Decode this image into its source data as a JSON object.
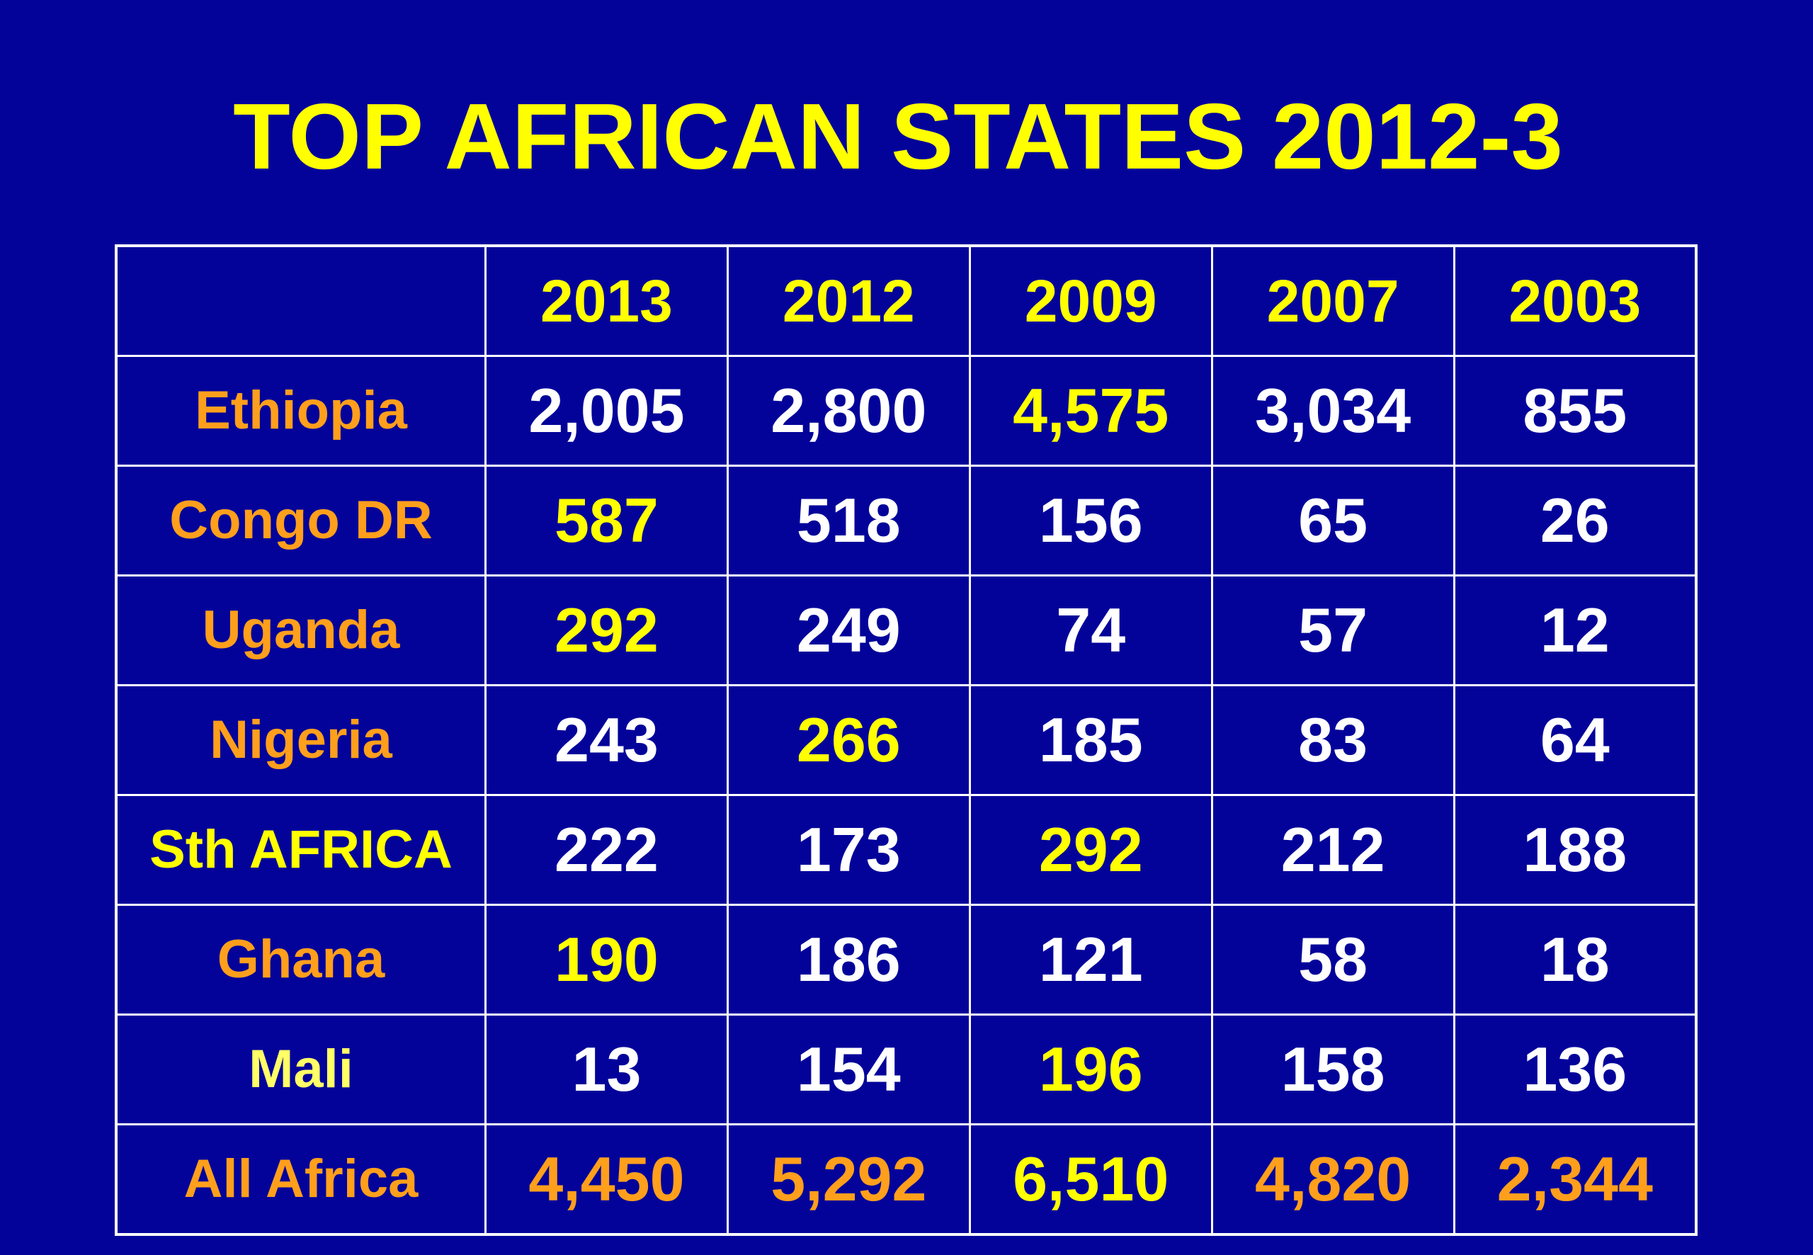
{
  "title": "TOP AFRICAN STATES 2012-3",
  "colors": {
    "background": "#03039a",
    "title": "#ffff00",
    "highlight": "#ffff00",
    "country_label": "#ff9f1c",
    "value": "#ffffff",
    "grid": "#ffffff"
  },
  "chart_data": {
    "type": "table",
    "title": "TOP AFRICAN STATES 2012-3",
    "columns": [
      "2013",
      "2012",
      "2009",
      "2007",
      "2003"
    ],
    "rows": [
      {
        "label": "Ethiopia",
        "label_color": "orange",
        "values": [
          "2,005",
          "2,800",
          "4,575",
          "3,034",
          "855"
        ],
        "highlight_index": 2
      },
      {
        "label": "Congo DR",
        "label_color": "orange",
        "values": [
          "587",
          "518",
          "156",
          "65",
          "26"
        ],
        "highlight_index": 0
      },
      {
        "label": "Uganda",
        "label_color": "orange",
        "values": [
          "292",
          "249",
          "74",
          "57",
          "12"
        ],
        "highlight_index": 0
      },
      {
        "label": "Nigeria",
        "label_color": "orange",
        "values": [
          "243",
          "266",
          "185",
          "83",
          "64"
        ],
        "highlight_index": 1
      },
      {
        "label": "Sth AFRICA",
        "label_color": "yellow",
        "values": [
          "222",
          "173",
          "292",
          "212",
          "188"
        ],
        "highlight_index": 2
      },
      {
        "label": "Ghana",
        "label_color": "orange",
        "values": [
          "190",
          "186",
          "121",
          "58",
          "18"
        ],
        "highlight_index": 0
      },
      {
        "label": "Mali",
        "label_color": "pale-yellow",
        "values": [
          "13",
          "154",
          "196",
          "158",
          "136"
        ],
        "highlight_index": 2
      },
      {
        "label": "All Africa",
        "label_color": "orange",
        "values": [
          "4,450",
          "5,292",
          "6,510",
          "4,820",
          "2,344"
        ],
        "highlight_index": 2,
        "is_total": true
      }
    ]
  }
}
